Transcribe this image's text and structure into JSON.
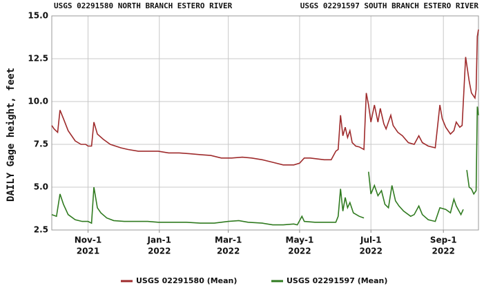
{
  "chart_data": {
    "type": "line",
    "titles": [
      "USGS 02291580 NORTH BRANCH ESTERO RIVER",
      "USGS 02291597 SOUTH BRANCH ESTERO RIVER"
    ],
    "y_label": "DAILY Gage height, feet",
    "xlim": [
      "2021-10-01",
      "2022-10-01"
    ],
    "xticks": [
      {
        "value": "2021-11-01",
        "label": "Nov-1",
        "year": "2021"
      },
      {
        "value": "2022-01-01",
        "label": "Jan-1",
        "year": "2022"
      },
      {
        "value": "2022-03-01",
        "label": "Mar-1",
        "year": "2022"
      },
      {
        "value": "2022-05-01",
        "label": "May-1",
        "year": "2022"
      },
      {
        "value": "2022-07-01",
        "label": "Jul-1",
        "year": "2022"
      },
      {
        "value": "2022-09-01",
        "label": "Sep-1",
        "year": "2022"
      }
    ],
    "ylim": [
      2.5,
      15
    ],
    "yticks": [
      2.5,
      {
        "value": 5,
        "label": "5.0"
      },
      7.5,
      {
        "value": 10,
        "label": "10.0"
      },
      12.5,
      {
        "value": 15,
        "label": "15.0"
      }
    ],
    "grid": true,
    "legend": "bottom",
    "series": [
      {
        "name": "USGS 02291580 (Mean)",
        "color": "#9e2a2b",
        "x": [
          "2021-10-01",
          "2021-10-03",
          "2021-10-06",
          "2021-10-08",
          "2021-10-11",
          "2021-10-15",
          "2021-10-21",
          "2021-10-26",
          "2021-10-30",
          "2021-11-01",
          "2021-11-04",
          "2021-11-06",
          "2021-11-09",
          "2021-11-14",
          "2021-11-20",
          "2021-11-29",
          "2021-12-05",
          "2021-12-14",
          "2021-12-22",
          "2021-12-31",
          "2022-01-09",
          "2022-01-18",
          "2022-01-27",
          "2022-02-05",
          "2022-02-14",
          "2022-02-23",
          "2022-03-04",
          "2022-03-13",
          "2022-03-21",
          "2022-03-30",
          "2022-04-08",
          "2022-04-17",
          "2022-04-26",
          "2022-05-01",
          "2022-05-05",
          "2022-05-10",
          "2022-05-16",
          "2022-05-22",
          "2022-05-28",
          "2022-06-01",
          "2022-06-03",
          "2022-06-05",
          "2022-06-07",
          "2022-06-09",
          "2022-06-11",
          "2022-06-13",
          "2022-06-15",
          "2022-06-18",
          "2022-06-21",
          "2022-06-25",
          "2022-06-27",
          "2022-06-29",
          "2022-07-01",
          "2022-07-04",
          "2022-07-07",
          "2022-07-09",
          "2022-07-12",
          "2022-07-14",
          "2022-07-18",
          "2022-07-20",
          "2022-07-24",
          "2022-07-28",
          "2022-08-02",
          "2022-08-07",
          "2022-08-11",
          "2022-08-14",
          "2022-08-19",
          "2022-08-25",
          "2022-08-29",
          "2022-08-31",
          "2022-09-03",
          "2022-09-07",
          "2022-09-10",
          "2022-09-12",
          "2022-09-15",
          "2022-09-17",
          "2022-09-20",
          "2022-09-23",
          "2022-09-25",
          "2022-09-28",
          "2022-09-29",
          "2022-09-30",
          "2022-10-01"
        ],
        "values": [
          8.6,
          8.4,
          8.2,
          9.5,
          9.0,
          8.3,
          7.7,
          7.5,
          7.5,
          7.4,
          7.4,
          8.8,
          8.1,
          7.8,
          7.5,
          7.3,
          7.2,
          7.1,
          7.1,
          7.1,
          7.0,
          7.0,
          6.95,
          6.9,
          6.85,
          6.7,
          6.7,
          6.75,
          6.7,
          6.6,
          6.45,
          6.3,
          6.3,
          6.4,
          6.7,
          6.7,
          6.65,
          6.6,
          6.6,
          7.1,
          7.2,
          9.2,
          8.0,
          8.5,
          7.9,
          8.3,
          7.6,
          7.4,
          7.35,
          7.2,
          10.5,
          9.8,
          8.8,
          9.8,
          8.8,
          9.6,
          8.7,
          8.4,
          9.2,
          8.6,
          8.2,
          8.0,
          7.6,
          7.5,
          8.0,
          7.6,
          7.4,
          7.3,
          9.8,
          9.0,
          8.5,
          8.1,
          8.3,
          8.8,
          8.5,
          8.6,
          12.6,
          11.2,
          10.5,
          10.2,
          10.7,
          13.8,
          14.2
        ]
      },
      {
        "name": "USGS 02291597 (Mean)",
        "color": "#2f7a1f",
        "x": [
          "2021-10-01",
          "2021-10-05",
          "2021-10-08",
          "2021-10-11",
          "2021-10-15",
          "2021-10-21",
          "2021-10-27",
          "2021-11-01",
          "2021-11-04",
          "2021-11-06",
          "2021-11-09",
          "2021-11-12",
          "2021-11-17",
          "2021-11-23",
          "2021-12-02",
          "2021-12-14",
          "2021-12-22",
          "2021-12-31",
          "2022-01-12",
          "2022-01-24",
          "2022-02-05",
          "2022-02-17",
          "2022-03-01",
          "2022-03-10",
          "2022-03-18",
          "2022-03-30",
          "2022-04-08",
          "2022-04-17",
          "2022-04-26",
          "2022-04-29",
          "2022-05-03",
          "2022-05-05",
          "2022-05-14",
          "2022-05-23",
          "2022-06-01",
          "2022-06-03",
          "2022-06-05",
          "2022-06-07",
          "2022-06-09",
          "2022-06-11",
          "2022-06-13",
          "2022-06-16",
          "2022-06-21",
          "2022-06-25",
          "2022-06-27",
          "2022-06-29",
          "2022-07-01",
          "2022-07-04",
          "2022-07-07",
          "2022-07-10",
          "2022-07-13",
          "2022-07-16",
          "2022-07-19",
          "2022-07-22",
          "2022-07-25",
          "2022-07-29",
          "2022-08-04",
          "2022-08-07",
          "2022-08-11",
          "2022-08-14",
          "2022-08-19",
          "2022-08-25",
          "2022-08-29",
          "2022-09-03",
          "2022-09-07",
          "2022-09-10",
          "2022-09-12",
          "2022-09-16",
          "2022-09-18",
          "2022-09-19",
          "2022-09-21",
          "2022-09-23",
          "2022-09-25",
          "2022-09-27",
          "2022-09-29",
          "2022-09-30",
          "2022-10-01"
        ],
        "values": [
          3.4,
          3.3,
          4.6,
          4.0,
          3.4,
          3.1,
          3.0,
          3.0,
          2.9,
          5.0,
          3.8,
          3.5,
          3.2,
          3.05,
          3.0,
          3.0,
          3.0,
          2.95,
          2.95,
          2.95,
          2.9,
          2.9,
          3.0,
          3.05,
          2.95,
          2.9,
          2.8,
          2.8,
          2.85,
          2.8,
          3.3,
          3.0,
          2.95,
          2.95,
          2.95,
          3.3,
          4.9,
          3.6,
          4.4,
          3.8,
          4.1,
          3.5,
          3.3,
          3.2,
          null,
          5.9,
          4.6,
          5.1,
          4.5,
          4.8,
          4.0,
          3.8,
          5.1,
          4.2,
          3.9,
          3.6,
          3.3,
          3.4,
          3.9,
          3.4,
          3.1,
          3.0,
          3.8,
          3.7,
          3.5,
          4.3,
          3.9,
          3.4,
          3.7,
          null,
          6.0,
          5.0,
          4.9,
          4.6,
          4.8,
          9.7,
          9.2
        ]
      }
    ]
  }
}
